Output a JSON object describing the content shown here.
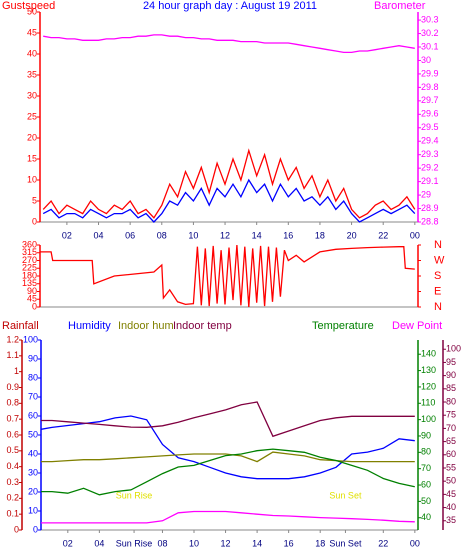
{
  "chart_data": [
    {
      "type": "line",
      "title": "24 hour graph day : August 19 2011",
      "ylabel": "Gustspeed",
      "y2label": "Barometer",
      "xlim": [
        0.3,
        24.2
      ],
      "xticks": [
        {
          "value": 2,
          "label": "02"
        },
        {
          "value": 4,
          "label": "04"
        },
        {
          "value": 6,
          "label": "06"
        },
        {
          "value": 8,
          "label": "08"
        },
        10,
        12,
        14,
        16,
        18,
        20,
        22,
        {
          "value": 24,
          "label": "00"
        }
      ],
      "ylim": [
        0,
        50
      ],
      "yticks": [
        0,
        5,
        10,
        15,
        20,
        25,
        30,
        35,
        40,
        45,
        50
      ],
      "y2lim": [
        28.8,
        30.36
      ],
      "y2ticks": [
        28.8,
        28.9,
        29,
        29.1,
        29.2,
        29.3,
        29.4,
        29.5,
        29.6,
        29.7,
        29.8,
        29.9,
        30,
        30.1,
        30.2,
        30.3
      ],
      "x": [
        0.5,
        1,
        1.5,
        2,
        2.5,
        3,
        3.5,
        4,
        4.5,
        5,
        5.5,
        6,
        6.5,
        7,
        7.5,
        8,
        8.5,
        9,
        9.5,
        10,
        10.5,
        11,
        11.5,
        12,
        12.5,
        13,
        13.5,
        14,
        14.5,
        15,
        15.5,
        16,
        16.5,
        17,
        17.5,
        18,
        18.5,
        19,
        19.5,
        20,
        20.5,
        21,
        21.5,
        22,
        22.5,
        23,
        23.5,
        24
      ],
      "series": [
        {
          "color": "#ff0000",
          "values": [
            3,
            5,
            2,
            4,
            3,
            2,
            5,
            3,
            2,
            4,
            3,
            5,
            2,
            3,
            1,
            4,
            9,
            6,
            12,
            8,
            13,
            7,
            14,
            9,
            15,
            10,
            17,
            11,
            16,
            9,
            15,
            10,
            13,
            8,
            11,
            6,
            10,
            5,
            8,
            3,
            1,
            2,
            4,
            5,
            3,
            4,
            6,
            3
          ]
        },
        {
          "color": "#0000ff",
          "values": [
            2,
            3,
            1,
            2,
            2,
            1,
            3,
            2,
            1,
            2,
            2,
            3,
            1,
            2,
            0,
            2,
            5,
            4,
            7,
            5,
            8,
            4,
            8,
            6,
            9,
            6,
            10,
            7,
            9,
            5,
            9,
            6,
            8,
            5,
            6,
            4,
            6,
            3,
            5,
            2,
            0,
            1,
            2,
            3,
            2,
            3,
            4,
            2
          ]
        },
        {
          "color": "#ff00ff",
          "axis": "y2",
          "values": [
            30.18,
            30.17,
            30.17,
            30.16,
            30.16,
            30.15,
            30.15,
            30.15,
            30.16,
            30.16,
            30.17,
            30.17,
            30.18,
            30.18,
            30.19,
            30.19,
            30.18,
            30.18,
            30.17,
            30.17,
            30.16,
            30.16,
            30.15,
            30.15,
            30.15,
            30.14,
            30.14,
            30.14,
            30.13,
            30.13,
            30.13,
            30.13,
            30.12,
            30.11,
            30.1,
            30.09,
            30.08,
            30.07,
            30.06,
            30.06,
            30.07,
            30.07,
            30.08,
            30.09,
            30.1,
            30.11,
            30.1,
            30.09
          ]
        }
      ]
    },
    {
      "type": "line",
      "xlim": [
        0.3,
        24.2
      ],
      "ylim": [
        0,
        360
      ],
      "yticks": [
        0,
        45,
        90,
        135,
        180,
        225,
        270,
        315,
        360
      ],
      "y2lim": [
        0,
        360
      ],
      "y2ticks": [
        {
          "value": 0,
          "label": "N"
        },
        {
          "value": 90,
          "label": "E"
        },
        {
          "value": 180,
          "label": "S"
        },
        {
          "value": 270,
          "label": "W"
        },
        {
          "value": 360,
          "label": "N"
        }
      ],
      "x": [
        0.3,
        1,
        1.1,
        3.6,
        3.7,
        5,
        7.5,
        8,
        8.1,
        8.5,
        9,
        9.5,
        10,
        10.25,
        10.5,
        10.75,
        11,
        11.25,
        11.5,
        11.75,
        12,
        12.25,
        12.5,
        12.75,
        13,
        13.25,
        13.5,
        13.75,
        14,
        14.25,
        14.5,
        14.75,
        15,
        15.25,
        15.5,
        15.75,
        16,
        16.5,
        17,
        18,
        19,
        20,
        21,
        22,
        23,
        23.3,
        23.4,
        24
      ],
      "series": [
        {
          "color": "#ff0000",
          "values": [
            320,
            320,
            270,
            270,
            135,
            180,
            203,
            244,
            52,
            99,
            30,
            15,
            20,
            350,
            10,
            340,
            5,
            355,
            20,
            330,
            15,
            345,
            40,
            360,
            10,
            350,
            0,
            340,
            25,
            355,
            5,
            350,
            30,
            345,
            60,
            330,
            270,
            300,
            262,
            320,
            335,
            340,
            345,
            348,
            350,
            350,
            225,
            220
          ]
        }
      ]
    },
    {
      "type": "line",
      "y3label": "Rainfall",
      "xlim": [
        0.3,
        24.2
      ],
      "xticks": [
        {
          "value": 2,
          "label": "02"
        },
        {
          "value": 4,
          "label": "04"
        },
        {
          "value": 6.2,
          "label": "Sun Rise"
        },
        {
          "value": 8,
          "label": "08"
        },
        10,
        12,
        14,
        16,
        18,
        {
          "value": 19.6,
          "label": "Sun Set"
        },
        22,
        {
          "value": 24,
          "label": "00"
        }
      ],
      "ylim": [
        0,
        100
      ],
      "yticks": [
        0,
        10,
        20,
        30,
        40,
        50,
        60,
        70,
        80,
        90,
        100
      ],
      "y2lim": [
        32.5,
        148.7
      ],
      "y2ticks": [
        40,
        50,
        60,
        70,
        80,
        90,
        100,
        110,
        120,
        130,
        140
      ],
      "y3lim": [
        0,
        1.2
      ],
      "y3ticks": [
        0,
        0.1,
        0.2,
        0.3,
        0.4,
        0.5,
        0.6,
        0.7,
        0.8,
        0.9,
        1,
        1.1,
        1.2
      ],
      "y4lim": [
        31.5,
        103.5
      ],
      "y4ticks": [
        35,
        40,
        45,
        50,
        55,
        60,
        65,
        70,
        75,
        80,
        85,
        90,
        95,
        100
      ],
      "annotations": [
        {
          "text": "Sun Rise",
          "x": 6.2
        },
        {
          "text": "Sun Set",
          "x": 19.6
        }
      ],
      "x": [
        0.3,
        1,
        2,
        3,
        4,
        5,
        6,
        7,
        8,
        9,
        10,
        11,
        12,
        13,
        14,
        15,
        16,
        17,
        18,
        19,
        20,
        21,
        22,
        23,
        24
      ],
      "series": [
        {
          "name": "Humidity",
          "color": "#0000ff",
          "values": [
            53,
            54,
            55,
            56,
            57,
            59,
            60,
            58,
            45,
            38,
            36,
            33,
            30,
            28,
            27,
            27,
            27,
            28,
            30,
            33,
            40,
            41,
            43,
            48,
            47
          ]
        },
        {
          "name": "Indoor hum",
          "color": "#808000",
          "values": [
            36,
            36,
            36.5,
            37,
            37,
            37.5,
            38,
            38.5,
            39,
            39.5,
            40,
            40,
            40,
            39,
            36,
            41,
            40,
            39,
            37,
            36.5,
            36,
            36,
            36,
            36,
            36
          ]
        },
        {
          "name": "Indoor temp",
          "color": "#800040",
          "axis": "y4",
          "values": [
            73,
            73,
            72.5,
            72,
            71.5,
            71,
            70.5,
            70.4,
            71,
            72.3,
            74,
            75.5,
            77,
            79,
            80,
            67,
            69,
            71,
            73,
            74,
            74.6,
            74.6,
            74.6,
            74.6,
            74.6
          ]
        },
        {
          "name": "Temperature",
          "color": "#008000",
          "axis": "y2",
          "values": [
            56,
            56,
            55,
            58,
            54,
            56,
            57,
            62,
            67,
            71,
            72,
            75,
            78,
            79,
            81,
            82,
            81,
            80,
            77,
            75,
            72,
            69,
            64,
            61,
            59
          ]
        },
        {
          "name": "Dew Point",
          "color": "#ff00ff",
          "axis": "y4",
          "values": [
            34.2,
            34.2,
            34.2,
            34.2,
            34.2,
            34.2,
            34.2,
            34.2,
            35,
            38,
            38.5,
            38.5,
            38.5,
            38,
            37.5,
            37,
            36.8,
            36.5,
            36.2,
            36,
            35.8,
            35.5,
            35.2,
            34.8,
            34.6
          ]
        }
      ]
    }
  ]
}
